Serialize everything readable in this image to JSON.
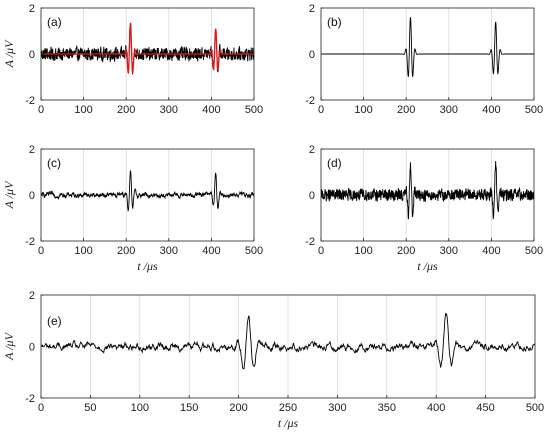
{
  "chart_data": [
    {
      "type": "line",
      "panel_label": "(a)",
      "xlabel": "",
      "ylabel": "A /μV",
      "xlim": [
        0,
        500
      ],
      "ylim": [
        -2,
        2
      ],
      "xticks": [
        0,
        100,
        200,
        300,
        400,
        500
      ],
      "yticks": [
        -2,
        0,
        2
      ],
      "grid": "vertical",
      "series": [
        {
          "color": "#000000",
          "style": "noisy",
          "noise": 0.22,
          "bursts": [
            {
              "t": 210,
              "amp": 1.2
            },
            {
              "t": 410,
              "amp": 1.0
            }
          ]
        },
        {
          "color": "#e01a1a",
          "style": "clean",
          "noise": 0,
          "bursts": [
            {
              "t": 210,
              "amp": 1.35
            },
            {
              "t": 410,
              "amp": 1.1
            }
          ]
        }
      ]
    },
    {
      "type": "line",
      "panel_label": "(b)",
      "xlabel": "",
      "ylabel": "",
      "xlim": [
        0,
        500
      ],
      "ylim": [
        -2,
        2
      ],
      "xticks": [
        0,
        100,
        200,
        300,
        400,
        500
      ],
      "yticks": [
        -2,
        0,
        2
      ],
      "grid": "vertical",
      "series": [
        {
          "color": "#000000",
          "style": "clean",
          "noise": 0,
          "bursts": [
            {
              "t": 210,
              "amp": 1.6
            },
            {
              "t": 410,
              "amp": 1.4
            }
          ]
        }
      ]
    },
    {
      "type": "line",
      "panel_label": "(c)",
      "xlabel": "t /μs",
      "ylabel": "A /μV",
      "xlim": [
        0,
        500
      ],
      "ylim": [
        -2,
        2
      ],
      "xticks": [
        0,
        100,
        200,
        300,
        400,
        500
      ],
      "yticks": [
        -2,
        0,
        2
      ],
      "grid": "vertical",
      "series": [
        {
          "color": "#000000",
          "style": "smooth",
          "noise": 0.09,
          "bursts": [
            {
              "t": 210,
              "amp": 1.05
            },
            {
              "t": 410,
              "amp": 0.9
            }
          ]
        }
      ]
    },
    {
      "type": "line",
      "panel_label": "(d)",
      "xlabel": "t /μs",
      "ylabel": "",
      "xlim": [
        0,
        500
      ],
      "ylim": [
        -2,
        2
      ],
      "xticks": [
        0,
        100,
        200,
        300,
        400,
        500
      ],
      "yticks": [
        -2,
        0,
        2
      ],
      "grid": "vertical",
      "series": [
        {
          "color": "#000000",
          "style": "noisy",
          "noise": 0.2,
          "bursts": [
            {
              "t": 210,
              "amp": 1.4
            },
            {
              "t": 410,
              "amp": 1.3
            }
          ]
        }
      ]
    },
    {
      "type": "line",
      "panel_label": "(e)",
      "xlabel": "t /μs",
      "ylabel": "A /μV",
      "xlim": [
        0,
        500
      ],
      "ylim": [
        -2,
        2
      ],
      "xticks": [
        0,
        50,
        100,
        150,
        200,
        250,
        300,
        350,
        400,
        450,
        500
      ],
      "yticks": [
        -2,
        0,
        2
      ],
      "grid": "vertical",
      "series": [
        {
          "color": "#000000",
          "style": "smooth",
          "noise": 0.14,
          "bursts": [
            {
              "t": 210,
              "amp": 1.2
            },
            {
              "t": 410,
              "amp": 1.15
            }
          ]
        }
      ]
    }
  ]
}
